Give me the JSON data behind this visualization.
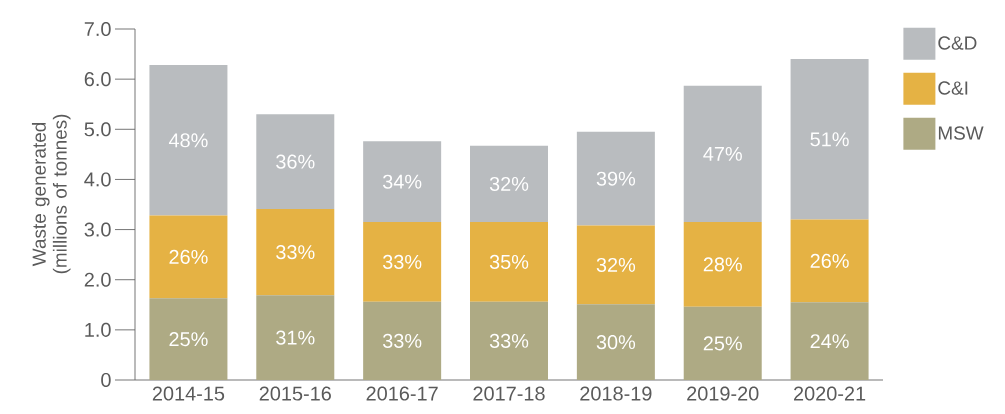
{
  "chart_data": {
    "type": "bar",
    "stacked": true,
    "ylabel": "Waste generated (millions of tonnes)",
    "categories": [
      "2014-15",
      "2015-16",
      "2016-17",
      "2017-18",
      "2018-19",
      "2019-20",
      "2020-21"
    ],
    "series": [
      {
        "name": "MSW",
        "color": "#aeaa84",
        "values": [
          1.63,
          1.69,
          1.56,
          1.56,
          1.51,
          1.46,
          1.55
        ]
      },
      {
        "name": "C&I",
        "color": "#e5b244",
        "values": [
          1.65,
          1.72,
          1.59,
          1.59,
          1.57,
          1.69,
          1.65
        ]
      },
      {
        "name": "C&D",
        "color": "#b9bcbf",
        "values": [
          3.0,
          1.89,
          1.61,
          1.52,
          1.87,
          2.72,
          3.2
        ]
      }
    ],
    "annotations": [
      "25%",
      "31%",
      "33%",
      "33%",
      "30%",
      "25%",
      "24%",
      "26%",
      "33%",
      "33%",
      "35%",
      "32%",
      "28%",
      "26%",
      "48%",
      "36%",
      "34%",
      "32%",
      "39%",
      "47%",
      "51%"
    ],
    "ylim": [
      0,
      7
    ],
    "yticks": [
      0,
      {
        "value": 1,
        "label": "1.0"
      },
      {
        "value": 2,
        "label": "2.0"
      },
      {
        "value": 3,
        "label": "3.0"
      },
      {
        "value": 4,
        "label": "4.0"
      },
      {
        "value": 5,
        "label": "5.0"
      },
      {
        "value": 6,
        "label": "6.0"
      },
      {
        "value": 7,
        "label": "7.0"
      }
    ],
    "legend": "top right",
    "grid": false
  }
}
